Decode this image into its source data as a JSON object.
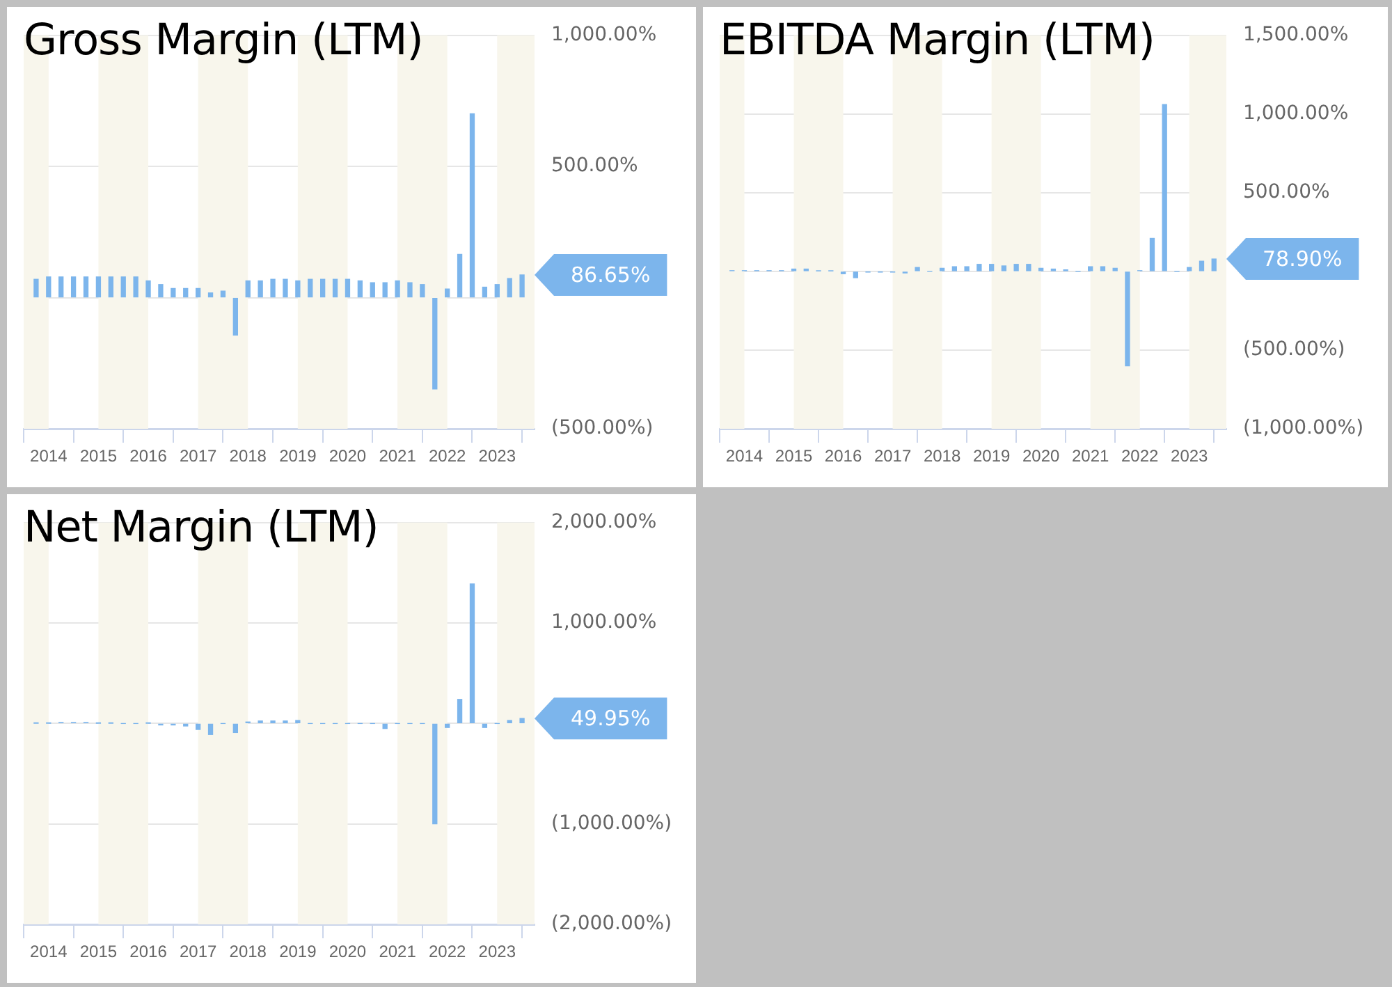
{
  "chart_data": [
    {
      "type": "bar",
      "title": "Gross Margin (LTM)",
      "x": [
        2013.75,
        2014,
        2014.25,
        2014.5,
        2014.75,
        2015,
        2015.25,
        2015.5,
        2015.75,
        2016,
        2016.25,
        2016.5,
        2016.75,
        2017,
        2017.25,
        2017.5,
        2017.75,
        2018,
        2018.25,
        2018.5,
        2018.75,
        2019,
        2019.25,
        2019.5,
        2019.75,
        2020,
        2020.25,
        2020.5,
        2020.75,
        2021,
        2021.25,
        2021.5,
        2021.75,
        2022,
        2022.25,
        2022.5,
        2022.75,
        2023,
        2023.25,
        2023.5
      ],
      "series": [
        {
          "color": "#7cb5ec",
          "values": [
            70,
            79,
            79,
            79,
            79,
            79,
            79,
            79,
            79,
            64,
            50,
            35,
            35,
            35,
            18,
            25,
            -143,
            64,
            64,
            70,
            70,
            64,
            70,
            70,
            70,
            70,
            64,
            57,
            57,
            64,
            57,
            50,
            -348,
            33,
            165,
            701,
            40,
            50,
            73,
            86.65
          ]
        }
      ],
      "xlim": [
        2013.5,
        2023.75
      ],
      "xticks": [
        2014,
        2015,
        2016,
        2017,
        2018,
        2019,
        2020,
        2021,
        2022,
        2023
      ],
      "ylim": [
        -500,
        1000
      ],
      "yticks": [
        {
          "value": -500,
          "label": "(500.00%)"
        },
        {
          "value": 0,
          "label": null
        },
        {
          "value": 500,
          "label": "500.00%"
        },
        {
          "value": 1000,
          "label": "1,000.00%"
        }
      ],
      "grid": "y",
      "legend": false,
      "bands": [
        {
          "axis": "x",
          "from": 2013.5,
          "to": 2014,
          "color": "#f8f6ec"
        },
        {
          "axis": "x",
          "from": 2015,
          "to": 2016,
          "color": "#f8f6ec"
        },
        {
          "axis": "x",
          "from": 2017,
          "to": 2018,
          "color": "#f8f6ec"
        },
        {
          "axis": "x",
          "from": 2019,
          "to": 2020,
          "color": "#f8f6ec"
        },
        {
          "axis": "x",
          "from": 2021,
          "to": 2022,
          "color": "#f8f6ec"
        },
        {
          "axis": "x",
          "from": 2023,
          "to": 2023.75,
          "color": "#f8f6ec"
        }
      ],
      "annotations": [
        "86.65%"
      ]
    },
    {
      "type": "bar",
      "title": "EBITDA Margin (LTM)",
      "x": [
        2013.75,
        2014,
        2014.25,
        2014.5,
        2014.75,
        2015,
        2015.25,
        2015.5,
        2015.75,
        2016,
        2016.25,
        2016.5,
        2016.75,
        2017,
        2017.25,
        2017.5,
        2017.75,
        2018,
        2018.25,
        2018.5,
        2018.75,
        2019,
        2019.25,
        2019.5,
        2019.75,
        2020,
        2020.25,
        2020.5,
        2020.75,
        2021,
        2021.25,
        2021.5,
        2021.75,
        2022,
        2022.25,
        2022.5,
        2022.75,
        2023,
        2023.25,
        2023.5
      ],
      "series": [
        {
          "color": "#7cb5ec",
          "values": [
            5,
            5,
            5,
            5,
            5,
            15,
            15,
            3,
            3,
            -15,
            -40,
            -3,
            -3,
            -3,
            -10,
            25,
            0,
            20,
            30,
            30,
            45,
            45,
            35,
            45,
            45,
            20,
            15,
            10,
            0,
            30,
            30,
            20,
            -600,
            5,
            210,
            1060,
            0,
            25,
            65,
            78.9
          ]
        }
      ],
      "xlim": [
        2013.5,
        2023.75
      ],
      "xticks": [
        2014,
        2015,
        2016,
        2017,
        2018,
        2019,
        2020,
        2021,
        2022,
        2023
      ],
      "ylim": [
        -1000,
        1500
      ],
      "yticks": [
        {
          "value": -1000,
          "label": "(1,000.00%)"
        },
        {
          "value": -500,
          "label": "(500.00%)"
        },
        {
          "value": 0,
          "label": null
        },
        {
          "value": 500,
          "label": "500.00%"
        },
        {
          "value": 1000,
          "label": "1,000.00%"
        },
        {
          "value": 1500,
          "label": "1,500.00%"
        }
      ],
      "grid": "y",
      "legend": false,
      "bands": [
        {
          "axis": "x",
          "from": 2013.5,
          "to": 2014,
          "color": "#f8f6ec"
        },
        {
          "axis": "x",
          "from": 2015,
          "to": 2016,
          "color": "#f8f6ec"
        },
        {
          "axis": "x",
          "from": 2017,
          "to": 2018,
          "color": "#f8f6ec"
        },
        {
          "axis": "x",
          "from": 2019,
          "to": 2020,
          "color": "#f8f6ec"
        },
        {
          "axis": "x",
          "from": 2021,
          "to": 2022,
          "color": "#f8f6ec"
        },
        {
          "axis": "x",
          "from": 2023,
          "to": 2023.75,
          "color": "#f8f6ec"
        }
      ],
      "annotations": [
        "78.90%"
      ]
    },
    {
      "type": "bar",
      "title": "Net Margin (LTM)",
      "x": [
        2013.75,
        2014,
        2014.25,
        2014.5,
        2014.75,
        2015,
        2015.25,
        2015.5,
        2015.75,
        2016,
        2016.25,
        2016.5,
        2016.75,
        2017,
        2017.25,
        2017.5,
        2017.75,
        2018,
        2018.25,
        2018.5,
        2018.75,
        2019,
        2019.25,
        2019.5,
        2019.75,
        2020,
        2020.25,
        2020.5,
        2020.75,
        2021,
        2021.25,
        2021.5,
        2021.75,
        2022,
        2022.25,
        2022.5,
        2022.75,
        2023,
        2023.25,
        2023.5
      ],
      "series": [
        {
          "color": "#7cb5ec",
          "values": [
            2,
            2,
            10,
            10,
            10,
            2,
            2,
            0,
            0,
            2,
            -15,
            -15,
            -25,
            -60,
            -110,
            0,
            -90,
            15,
            25,
            25,
            25,
            30,
            0,
            0,
            0,
            0,
            0,
            0,
            -50,
            0,
            0,
            0,
            -1000,
            -40,
            240,
            1390,
            -40,
            0,
            30,
            49.95
          ]
        }
      ],
      "xlim": [
        2013.5,
        2023.75
      ],
      "xticks": [
        2014,
        2015,
        2016,
        2017,
        2018,
        2019,
        2020,
        2021,
        2022,
        2023
      ],
      "ylim": [
        -2000,
        2000
      ],
      "yticks": [
        {
          "value": -2000,
          "label": "(2,000.00%)"
        },
        {
          "value": -1000,
          "label": "(1,000.00%)"
        },
        {
          "value": 0,
          "label": null
        },
        {
          "value": 1000,
          "label": "1,000.00%"
        },
        {
          "value": 2000,
          "label": "2,000.00%"
        }
      ],
      "grid": "y",
      "legend": false,
      "bands": [
        {
          "axis": "x",
          "from": 2013.5,
          "to": 2014,
          "color": "#f8f6ec"
        },
        {
          "axis": "x",
          "from": 2015,
          "to": 2016,
          "color": "#f8f6ec"
        },
        {
          "axis": "x",
          "from": 2017,
          "to": 2018,
          "color": "#f8f6ec"
        },
        {
          "axis": "x",
          "from": 2019,
          "to": 2020,
          "color": "#f8f6ec"
        },
        {
          "axis": "x",
          "from": 2021,
          "to": 2022,
          "color": "#f8f6ec"
        },
        {
          "axis": "x",
          "from": 2023,
          "to": 2023.75,
          "color": "#f8f6ec"
        }
      ],
      "annotations": [
        "49.95%"
      ]
    }
  ]
}
